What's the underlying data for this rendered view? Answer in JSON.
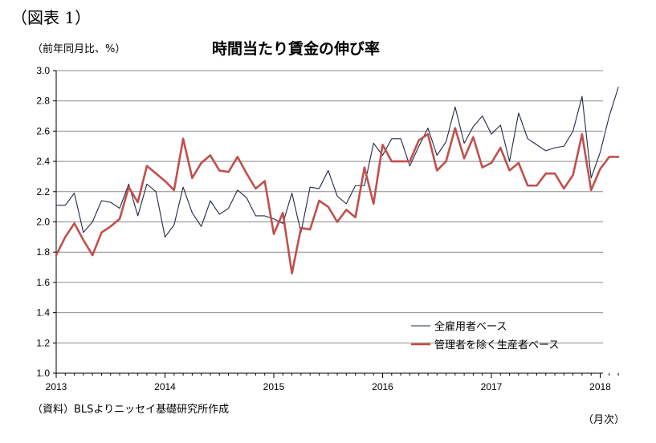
{
  "figure_label": "（図表 1）",
  "unit_label": "（前年同月比、%）",
  "source_note": "（資料）BLSよりニッセイ基礎研究所作成",
  "x_unit_label": "（月次）",
  "chart_data": {
    "type": "line",
    "title": "時間当たり賃金の伸び率",
    "ylabel": "（前年同月比、%）",
    "xlabel": "（月次）",
    "ylim": [
      1.0,
      3.0
    ],
    "yticks": [
      "1.0",
      "1.2",
      "1.4",
      "1.6",
      "1.8",
      "2.0",
      "2.2",
      "2.4",
      "2.6",
      "2.8",
      "3.0"
    ],
    "xticks": [
      "2013",
      "2014",
      "2015",
      "2016",
      "2017",
      "2018"
    ],
    "x_start": "2013-01",
    "grid": true,
    "legend_position": "bottom-right",
    "series": [
      {
        "name": "全雇用者ベース",
        "color": "#1f2a44",
        "values": [
          2.11,
          2.11,
          2.19,
          1.93,
          2.0,
          2.14,
          2.13,
          2.09,
          2.25,
          2.04,
          2.25,
          2.2,
          1.9,
          1.98,
          2.23,
          2.06,
          1.97,
          2.14,
          2.05,
          2.09,
          2.21,
          2.16,
          2.04,
          2.04,
          2.02,
          1.99,
          2.19,
          1.93,
          2.23,
          2.22,
          2.34,
          2.17,
          2.12,
          2.24,
          2.24,
          2.52,
          2.44,
          2.55,
          2.55,
          2.37,
          2.5,
          2.62,
          2.44,
          2.53,
          2.76,
          2.52,
          2.63,
          2.7,
          2.58,
          2.64,
          2.4,
          2.72,
          2.55,
          2.51,
          2.47,
          2.49,
          2.5,
          2.6,
          2.83,
          2.29,
          2.46,
          2.7,
          2.89
        ]
      },
      {
        "name": "管理者を除く生産者ベース",
        "color": "#c0504d",
        "values": [
          1.78,
          1.9,
          1.99,
          1.88,
          1.78,
          1.93,
          1.97,
          2.02,
          2.23,
          2.13,
          2.37,
          2.32,
          2.27,
          2.21,
          2.55,
          2.29,
          2.39,
          2.44,
          2.34,
          2.33,
          2.43,
          2.32,
          2.22,
          2.27,
          1.92,
          2.06,
          1.66,
          1.96,
          1.95,
          2.14,
          2.1,
          2.0,
          2.08,
          2.03,
          2.36,
          2.12,
          2.51,
          2.4,
          2.4,
          2.4,
          2.54,
          2.58,
          2.34,
          2.4,
          2.62,
          2.42,
          2.56,
          2.36,
          2.39,
          2.49,
          2.34,
          2.39,
          2.24,
          2.24,
          2.32,
          2.32,
          2.22,
          2.31,
          2.58,
          2.21,
          2.35,
          2.43,
          2.43
        ]
      }
    ]
  }
}
